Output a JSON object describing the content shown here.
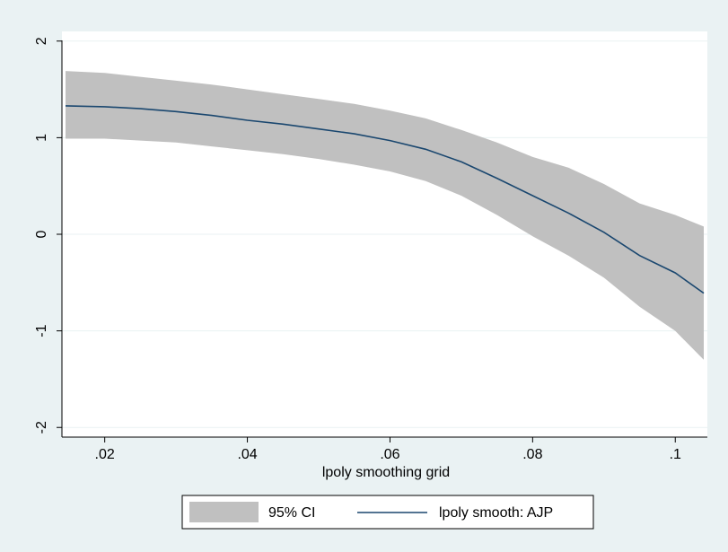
{
  "chart_data": {
    "type": "area",
    "title": "",
    "xlabel": "lpoly smoothing grid",
    "ylabel": "",
    "xlim": [
      0.014,
      0.1045
    ],
    "ylim": [
      -2.1,
      2.1
    ],
    "x_ticks": [
      0.02,
      0.04,
      0.06,
      0.08,
      0.1
    ],
    "x_tick_labels": [
      ".02",
      ".04",
      ".06",
      ".08",
      ".1"
    ],
    "y_ticks": [
      -2,
      -1,
      0,
      1,
      2
    ],
    "y_tick_labels": [
      "-2",
      "-1",
      "0",
      "1",
      "2"
    ],
    "grid": true,
    "legend_position": "bottom",
    "colors": {
      "background": "#eaf2f3",
      "plot_area": "#ffffff",
      "gridline": "#eaf2f3",
      "ci_band": "#c0c0c0",
      "line": "#1a476f"
    },
    "series": [
      {
        "name": "95% CI",
        "kind": "band",
        "x": [
          0.0145,
          0.02,
          0.025,
          0.03,
          0.035,
          0.04,
          0.045,
          0.05,
          0.055,
          0.06,
          0.065,
          0.07,
          0.075,
          0.08,
          0.085,
          0.09,
          0.095,
          0.1,
          0.104
        ],
        "upper": [
          1.69,
          1.67,
          1.63,
          1.59,
          1.55,
          1.5,
          1.45,
          1.4,
          1.35,
          1.28,
          1.2,
          1.08,
          0.95,
          0.8,
          0.69,
          0.52,
          0.32,
          0.2,
          0.08
        ],
        "lower": [
          0.99,
          0.99,
          0.97,
          0.95,
          0.91,
          0.87,
          0.83,
          0.78,
          0.72,
          0.65,
          0.55,
          0.4,
          0.2,
          -0.02,
          -0.22,
          -0.45,
          -0.75,
          -1.0,
          -1.3
        ]
      },
      {
        "name": "lpoly smooth: AJP",
        "kind": "line",
        "x": [
          0.0145,
          0.02,
          0.025,
          0.03,
          0.035,
          0.04,
          0.045,
          0.05,
          0.055,
          0.06,
          0.065,
          0.07,
          0.075,
          0.08,
          0.085,
          0.09,
          0.095,
          0.1,
          0.104
        ],
        "values": [
          1.33,
          1.32,
          1.3,
          1.27,
          1.23,
          1.18,
          1.14,
          1.09,
          1.04,
          0.97,
          0.88,
          0.75,
          0.58,
          0.4,
          0.22,
          0.02,
          -0.22,
          -0.4,
          -0.61
        ]
      }
    ],
    "legend": [
      {
        "label": "95% CI",
        "kind": "band"
      },
      {
        "label": "lpoly smooth: AJP",
        "kind": "line"
      }
    ]
  }
}
